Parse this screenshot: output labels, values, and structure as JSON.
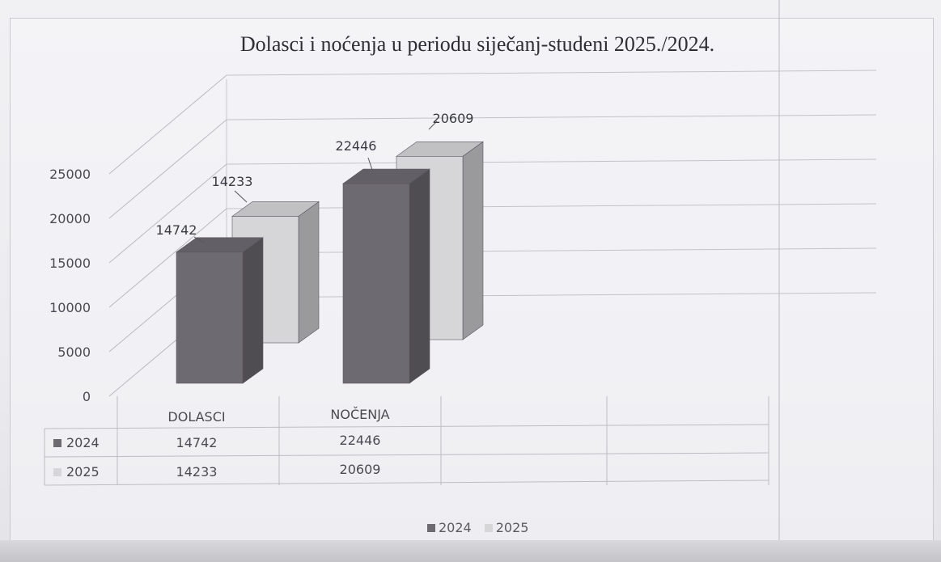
{
  "chart_data": {
    "type": "bar",
    "title": "Dolasci i noćenja u periodu siječanj-studeni 2025./2024.",
    "categories": [
      "DOLASCI",
      "NOČENJA"
    ],
    "series": [
      {
        "name": "2024",
        "values": [
          14742,
          22446
        ],
        "color": "#6e6a72"
      },
      {
        "name": "2025",
        "values": [
          14233,
          20609
        ],
        "color": "#d6d6d9"
      }
    ],
    "data_labels": {
      "2024": [
        "14742",
        "22446"
      ],
      "2025": [
        "14233",
        "20609"
      ]
    },
    "ylim": [
      0,
      25000
    ],
    "yticks": [
      "0",
      "5000",
      "10000",
      "15000",
      "20000",
      "25000"
    ],
    "grid": true,
    "data_table": true,
    "legend": "bottom",
    "style": "3d-column"
  }
}
